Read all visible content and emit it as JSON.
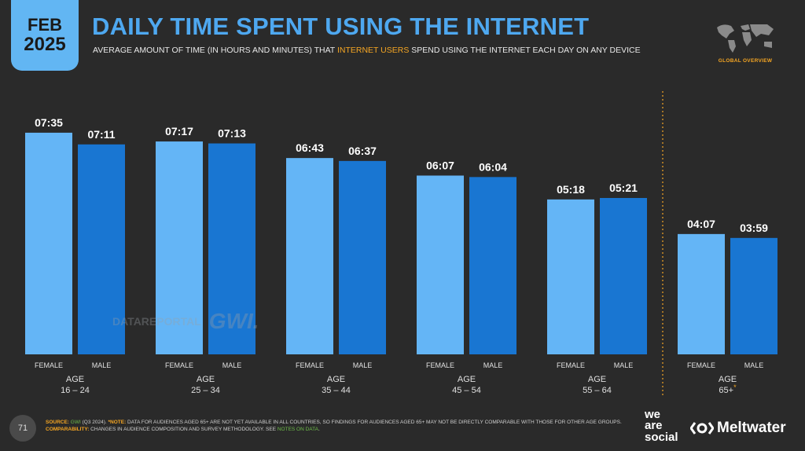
{
  "header": {
    "badge_month": "FEB",
    "badge_year": "2025",
    "title": "DAILY TIME SPENT USING THE INTERNET",
    "subtitle_pre": "AVERAGE AMOUNT OF TIME (IN HOURS AND MINUTES) THAT ",
    "subtitle_highlight": "INTERNET USERS",
    "subtitle_post": " SPEND USING THE INTERNET EACH DAY ON ANY DEVICE",
    "section_label": "GLOBAL OVERVIEW"
  },
  "colors": {
    "female": "#64b5f6",
    "male": "#1976d2",
    "accent": "#f5a623",
    "title": "#4ea8f0"
  },
  "watermark": {
    "datareportal": "DATAREPORTAL",
    "gwi": "GWI."
  },
  "chart_data": {
    "type": "bar",
    "unit": "hours:minutes",
    "series_labels": [
      "FEMALE",
      "MALE"
    ],
    "groups": [
      {
        "label": "AGE",
        "range": "16 – 24",
        "female": "07:35",
        "male": "07:11",
        "female_min": 455,
        "male_min": 431
      },
      {
        "label": "AGE",
        "range": "25 – 34",
        "female": "07:17",
        "male": "07:13",
        "female_min": 437,
        "male_min": 433
      },
      {
        "label": "AGE",
        "range": "35 – 44",
        "female": "06:43",
        "male": "06:37",
        "female_min": 403,
        "male_min": 397
      },
      {
        "label": "AGE",
        "range": "45 – 54",
        "female": "06:07",
        "male": "06:04",
        "female_min": 367,
        "male_min": 364
      },
      {
        "label": "AGE",
        "range": "55 – 64",
        "female": "05:18",
        "male": "05:21",
        "female_min": 318,
        "male_min": 321
      },
      {
        "label": "AGE",
        "range": "65+",
        "female": "04:07",
        "male": "03:59",
        "female_min": 247,
        "male_min": 239
      }
    ],
    "ylim_minutes": [
      0,
      500
    ],
    "footnote_mark": "*"
  },
  "footer": {
    "page_number": "71",
    "source_label": "SOURCE:",
    "source_gwi": "GWI",
    "source_text": " (Q3 2024). ",
    "note_label": "*NOTE:",
    "note_text": " DATA FOR AUDIENCES AGED 65+ ARE NOT YET AVAILABLE IN ALL COUNTRIES, SO FINDINGS FOR AUDIENCES AGED 65+ MAY NOT BE DIRECTLY COMPARABLE WITH THOSE FOR OTHER AGE GROUPS. ",
    "comparability_label": "COMPARABILITY:",
    "comparability_text": " CHANGES IN AUDIENCE COMPOSITION AND SURVEY METHODOLOGY. SEE ",
    "notes_link": "NOTES ON DATA",
    "brand_we_are_social": "we\nare\nsocial",
    "brand_meltwater": "Meltwater"
  }
}
